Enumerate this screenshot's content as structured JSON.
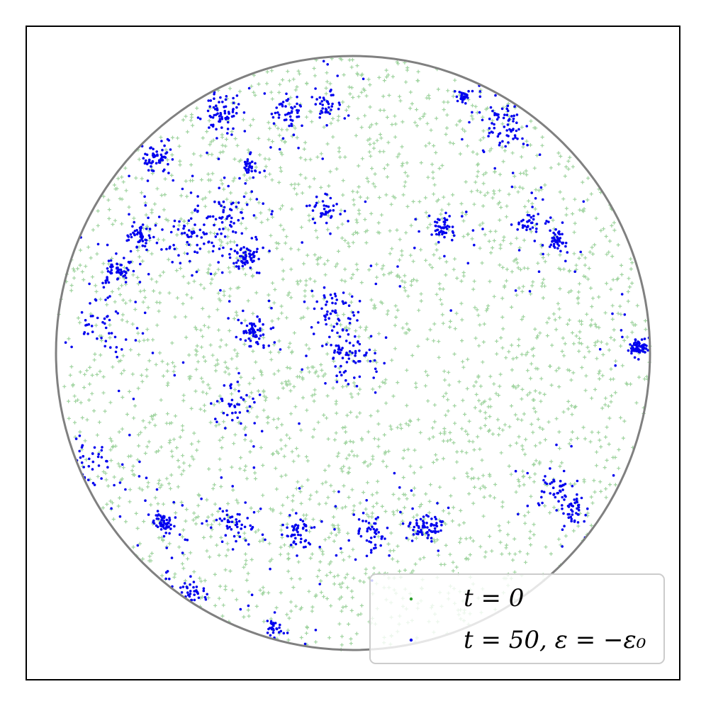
{
  "colors": {
    "initial": "#2ca02c",
    "final": "#0000ee",
    "boundary": "#808080",
    "frame": "#000000"
  },
  "chart_data": {
    "type": "scatter",
    "title": "",
    "xlabel": "",
    "ylabel": "",
    "xlim": [
      -1.1,
      1.1
    ],
    "ylim": [
      -1.1,
      1.1
    ],
    "grid": false,
    "ticks": false,
    "boundary": {
      "shape": "circle",
      "center": [
        0,
        0
      ],
      "radius": 1.0
    },
    "legend": {
      "position": "lower-right"
    },
    "series": [
      {
        "name": "t = 0",
        "marker": "plus",
        "alpha": 0.45,
        "distribution": "uniform in disk",
        "approx_points": 2500
      },
      {
        "name": "t = 50, ε = −ε₀",
        "marker": "dot",
        "distribution": "clustered",
        "clusters": [
          {
            "x": -0.41,
            "y": 0.47
          },
          {
            "x": -0.02,
            "y": 0.0
          },
          {
            "x": -0.4,
            "y": -0.18
          },
          {
            "x": 0.06,
            "y": -0.61
          },
          {
            "x": 0.75,
            "y": -0.53
          },
          {
            "x": 0.59,
            "y": 0.43
          },
          {
            "x": 0.69,
            "y": 0.38
          },
          {
            "x": -0.66,
            "y": 0.65
          },
          {
            "x": -0.22,
            "y": 0.81
          },
          {
            "x": -0.44,
            "y": 0.81
          },
          {
            "x": -0.09,
            "y": 0.48
          },
          {
            "x": -0.64,
            "y": -0.57
          },
          {
            "x": -0.89,
            "y": -0.37
          },
          {
            "x": 0.25,
            "y": -0.59
          },
          {
            "x": 0.51,
            "y": 0.78
          },
          {
            "x": 0.96,
            "y": 0.02
          },
          {
            "x": -0.79,
            "y": 0.28
          },
          {
            "x": -0.35,
            "y": 0.62
          },
          {
            "x": -0.36,
            "y": 0.32
          },
          {
            "x": -0.84,
            "y": 0.09
          },
          {
            "x": -0.4,
            "y": -0.57
          },
          {
            "x": -0.72,
            "y": 0.39
          },
          {
            "x": -0.18,
            "y": -0.6
          },
          {
            "x": 0.3,
            "y": 0.42
          },
          {
            "x": 0.37,
            "y": 0.86
          },
          {
            "x": -0.33,
            "y": 0.07
          },
          {
            "x": -0.54,
            "y": 0.4
          },
          {
            "x": -0.09,
            "y": 0.83
          },
          {
            "x": 0.69,
            "y": -0.46
          },
          {
            "x": -0.07,
            "y": 0.15
          },
          {
            "x": -0.55,
            "y": -0.81
          },
          {
            "x": -0.27,
            "y": -0.93
          }
        ]
      }
    ]
  },
  "legend": {
    "items": [
      {
        "label": "t = 0"
      },
      {
        "label": "t = 50, ε = −ε₀"
      }
    ]
  }
}
